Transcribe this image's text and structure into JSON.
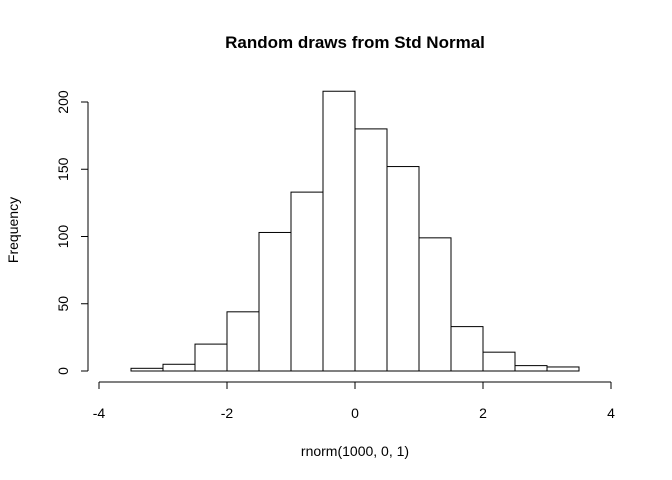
{
  "chart_data": {
    "type": "bar",
    "subtype": "histogram",
    "title": "Random draws from Std Normal",
    "xlabel": "rnorm(1000, 0, 1)",
    "ylabel": "Frequency",
    "bins": [
      {
        "from": -3.5,
        "to": -3.0,
        "count": 2
      },
      {
        "from": -3.0,
        "to": -2.5,
        "count": 5
      },
      {
        "from": -2.5,
        "to": -2.0,
        "count": 20
      },
      {
        "from": -2.0,
        "to": -1.5,
        "count": 44
      },
      {
        "from": -1.5,
        "to": -1.0,
        "count": 103
      },
      {
        "from": -1.0,
        "to": -0.5,
        "count": 133
      },
      {
        "from": -0.5,
        "to": 0.0,
        "count": 208
      },
      {
        "from": 0.0,
        "to": 0.5,
        "count": 180
      },
      {
        "from": 0.5,
        "to": 1.0,
        "count": 152
      },
      {
        "from": 1.0,
        "to": 1.5,
        "count": 99
      },
      {
        "from": 1.5,
        "to": 2.0,
        "count": 33
      },
      {
        "from": 2.0,
        "to": 2.5,
        "count": 14
      },
      {
        "from": 2.5,
        "to": 3.0,
        "count": 4
      },
      {
        "from": 3.0,
        "to": 3.5,
        "count": 3
      }
    ],
    "xlim": [
      -4,
      4
    ],
    "ylim": [
      0,
      200
    ],
    "xticks": [
      -4,
      -2,
      0,
      2,
      4
    ],
    "yticks": [
      0,
      50,
      100,
      150,
      200
    ],
    "grid": false,
    "colors": {
      "bar_fill": "#ffffff",
      "bar_stroke": "#000000",
      "axis": "#000000"
    }
  }
}
